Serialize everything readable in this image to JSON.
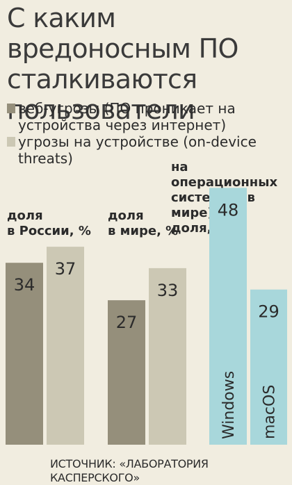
{
  "title": "С каким вредоносным ПО сталкиваются пользователи",
  "legend": [
    {
      "label": "веб-угрозы (ПО проникает на устройства через интернет)",
      "color": "#958f7b"
    },
    {
      "label": "угрозы на устройстве (on-device threats)",
      "color": "#ccc8b4"
    }
  ],
  "groups": {
    "russia": {
      "label_line1": "доля",
      "label_line2": "в России, %"
    },
    "world": {
      "label_line1": "доля",
      "label_line2": "в мире, %"
    },
    "os": {
      "label_line1": "на операционных",
      "label_line2": "системах (в мире)",
      "label_line3": "доля, %"
    }
  },
  "source": "ИСТОЧНИК: «ЛАБОРАТОРИЯ КАСПЕРСКОГО»",
  "colors": {
    "background": "#f1ede0",
    "web": "#958f7b",
    "device": "#ccc8b4",
    "os": "#a8d7db",
    "text": "#2b2b2b"
  },
  "chart_data": [
    {
      "type": "bar",
      "group": "доля в России, %",
      "categories": [
        "веб-угрозы",
        "угрозы на устройстве"
      ],
      "values": [
        34,
        37
      ]
    },
    {
      "type": "bar",
      "group": "доля в мире, %",
      "categories": [
        "веб-угрозы",
        "угрозы на устройстве"
      ],
      "values": [
        27,
        33
      ]
    },
    {
      "type": "bar",
      "group": "на операционных системах (в мире) доля, %",
      "categories": [
        "Windows",
        "macOS"
      ],
      "values": [
        48,
        29
      ]
    }
  ]
}
